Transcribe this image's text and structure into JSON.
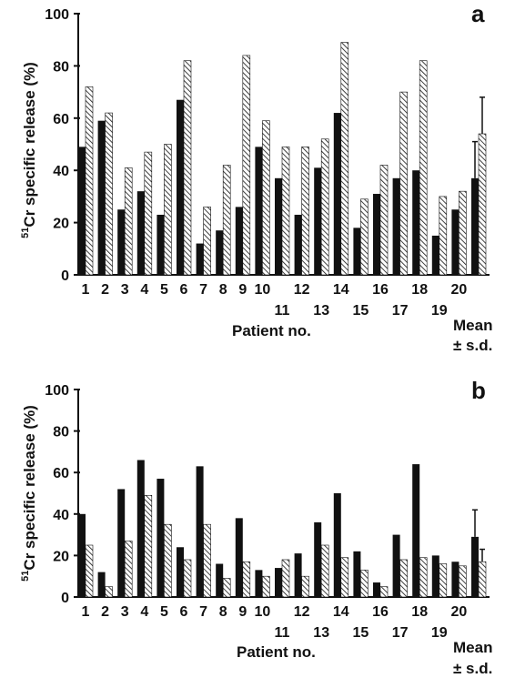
{
  "chart_data": [
    {
      "type": "bar",
      "panel": "a",
      "ylabel_sup": "51",
      "ylabel": "Cr specific release (%)",
      "xlabel": "Patient no.",
      "ylim": [
        0,
        100
      ],
      "yticks": [
        "0",
        "20",
        "40",
        "60",
        "80",
        "100"
      ],
      "categories": [
        "1",
        "2",
        "3",
        "4",
        "5",
        "6",
        "7",
        "8",
        "9",
        "10",
        "11",
        "12",
        "13",
        "14",
        "15",
        "16",
        "17",
        "18",
        "19",
        "20",
        "Mean"
      ],
      "category_labels": [
        "1",
        "2",
        "3",
        "4",
        "5",
        "6",
        "7",
        "8",
        "9",
        "10",
        "11",
        "12",
        "13",
        "14",
        "15",
        "16",
        "17",
        "18",
        "19",
        "20"
      ],
      "mean_label": [
        "Mean",
        "± s.d."
      ],
      "series": [
        {
          "style": "solid",
          "values": [
            49,
            59,
            25,
            32,
            23,
            67,
            12,
            17,
            26,
            49,
            37,
            23,
            41,
            62,
            18,
            31,
            37,
            40,
            15,
            25,
            37
          ],
          "error": [
            null,
            null,
            null,
            null,
            null,
            null,
            null,
            null,
            null,
            null,
            null,
            null,
            null,
            null,
            null,
            null,
            null,
            null,
            null,
            null,
            14
          ]
        },
        {
          "style": "hatched",
          "values": [
            72,
            62,
            41,
            47,
            50,
            82,
            26,
            42,
            84,
            59,
            49,
            49,
            52,
            89,
            29,
            42,
            70,
            82,
            30,
            32,
            54
          ],
          "error": [
            null,
            null,
            null,
            null,
            null,
            null,
            null,
            null,
            null,
            null,
            null,
            null,
            null,
            null,
            null,
            null,
            null,
            null,
            null,
            null,
            14
          ]
        }
      ]
    },
    {
      "type": "bar",
      "panel": "b",
      "ylabel_sup": "51",
      "ylabel": "Cr specific release (%)",
      "xlabel": "Patient no.",
      "ylim": [
        0,
        100
      ],
      "yticks": [
        "0",
        "20",
        "40",
        "60",
        "80",
        "100"
      ],
      "categories": [
        "1",
        "2",
        "3",
        "4",
        "5",
        "6",
        "7",
        "8",
        "9",
        "10",
        "11",
        "12",
        "13",
        "14",
        "15",
        "16",
        "17",
        "18",
        "19",
        "20",
        "Mean"
      ],
      "category_labels": [
        "1",
        "2",
        "3",
        "4",
        "5",
        "6",
        "7",
        "8",
        "9",
        "10",
        "11",
        "12",
        "13",
        "14",
        "15",
        "16",
        "17",
        "18",
        "19",
        "20"
      ],
      "mean_label": [
        "Mean",
        "± s.d."
      ],
      "series": [
        {
          "style": "solid",
          "values": [
            40,
            12,
            52,
            66,
            57,
            24,
            63,
            16,
            38,
            13,
            14,
            21,
            36,
            50,
            22,
            7,
            30,
            64,
            20,
            17,
            29
          ],
          "error": [
            null,
            null,
            null,
            null,
            null,
            null,
            null,
            null,
            null,
            null,
            null,
            null,
            null,
            null,
            null,
            null,
            null,
            null,
            null,
            null,
            13
          ]
        },
        {
          "style": "hatched",
          "values": [
            25,
            5,
            27,
            49,
            35,
            18,
            35,
            9,
            17,
            10,
            18,
            10,
            25,
            19,
            13,
            5,
            18,
            19,
            16,
            15,
            17
          ],
          "error": [
            null,
            null,
            null,
            null,
            null,
            null,
            null,
            null,
            null,
            null,
            null,
            null,
            null,
            null,
            null,
            null,
            null,
            null,
            null,
            null,
            6
          ]
        }
      ]
    }
  ]
}
